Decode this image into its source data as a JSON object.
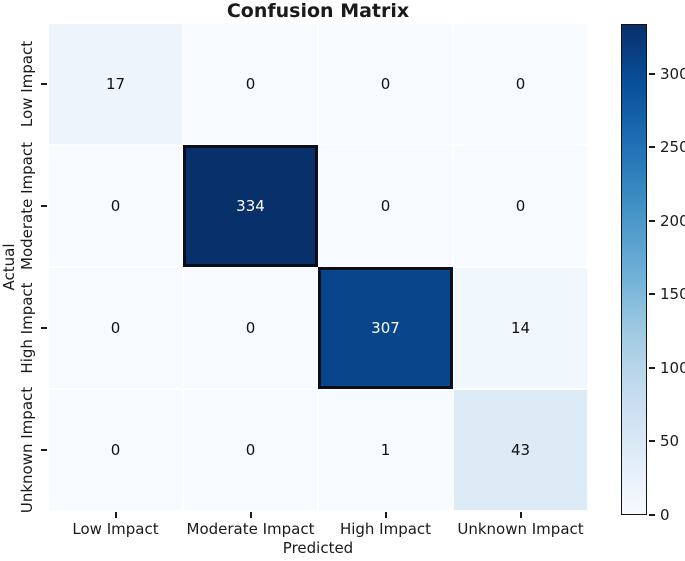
{
  "chart_data": {
    "type": "heatmap",
    "title": "Confusion Matrix",
    "xlabel": "Predicted",
    "ylabel": "Actual",
    "x_categories": [
      "Low Impact",
      "Moderate Impact",
      "High Impact",
      "Unknown Impact"
    ],
    "y_categories": [
      "Low Impact",
      "Moderate Impact",
      "High Impact",
      "Unknown Impact"
    ],
    "values": [
      [
        17,
        0,
        0,
        0
      ],
      [
        0,
        334,
        0,
        0
      ],
      [
        0,
        0,
        307,
        14
      ],
      [
        0,
        0,
        1,
        43
      ]
    ],
    "vmin": 0,
    "vmax": 334,
    "colormap": "Blues",
    "colormap_stops": [
      "#f7fbff",
      "#deebf7",
      "#c6dbef",
      "#9ecae1",
      "#6baed6",
      "#4292c6",
      "#2171b5",
      "#08519c",
      "#08306b"
    ],
    "colorbar_ticks": [
      0,
      50,
      100,
      150,
      200,
      250,
      300
    ],
    "legend_position": "right-colorbar",
    "grid": false,
    "cell_text_color_light_bg": "#111111",
    "cell_text_color_dark_bg": "#ffffff",
    "dark_cell_border_color": "#0a0e1a",
    "tick_color": "#1a1a1a"
  }
}
